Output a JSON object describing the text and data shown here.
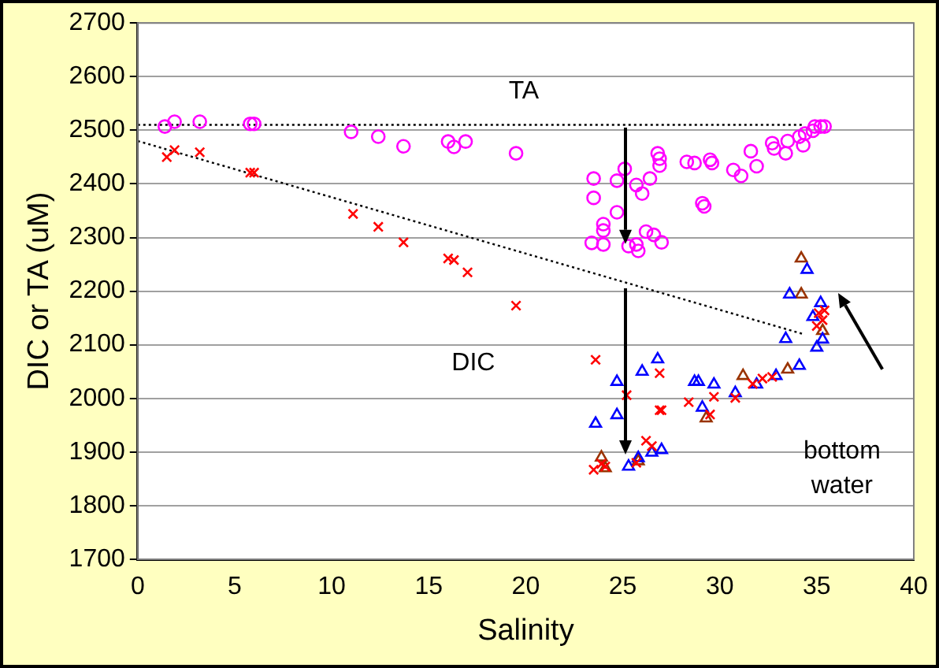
{
  "chart_data": {
    "type": "scatter",
    "xlabel": "Salinity",
    "ylabel": "DIC or TA (uM)",
    "xlim": [
      0,
      40
    ],
    "xticks": [
      0,
      5,
      10,
      15,
      20,
      25,
      30,
      35,
      40
    ],
    "ylim": [
      1700,
      2700
    ],
    "yticks": [
      1700,
      1800,
      1900,
      2000,
      2100,
      2200,
      2300,
      2400,
      2500,
      2600,
      2700
    ],
    "grid": "y",
    "legend": false,
    "annotations": [
      "TA",
      "DIC",
      "bottom water"
    ],
    "series": [
      {
        "color": "#ff00ff",
        "marker": "circle",
        "x": [
          1.4,
          1.9,
          3.2,
          5.8,
          6,
          11,
          12.4,
          13.7,
          16,
          16.3,
          16.9,
          19.5,
          23.5,
          23.5,
          24.7,
          25.1,
          24.7,
          24,
          24,
          23.4,
          24,
          25.7,
          26,
          26.4,
          26.8,
          26.9,
          26.9,
          25.3,
          25.7,
          25.8,
          26.2,
          26.6,
          27,
          28.3,
          28.7,
          29.5,
          29.6,
          29.1,
          29.2,
          30.7,
          31.1,
          31.6,
          31.9,
          32.7,
          32.8,
          33.4,
          33.5,
          34.1,
          34.3,
          34.4,
          34.9,
          35.2,
          35.4,
          34.8
        ],
        "values": [
          2507,
          2516,
          2516,
          2512,
          2512,
          2497,
          2488,
          2470,
          2479,
          2469,
          2479,
          2457,
          2410,
          2374,
          2406,
          2428,
          2347,
          2325,
          2313,
          2290,
          2287,
          2398,
          2382,
          2410,
          2457,
          2447,
          2434,
          2284,
          2287,
          2275,
          2311,
          2305,
          2291,
          2441,
          2439,
          2445,
          2439,
          2364,
          2358,
          2426,
          2415,
          2461,
          2433,
          2476,
          2466,
          2457,
          2480,
          2488,
          2472,
          2494,
          2507,
          2507,
          2507,
          2499
        ]
      },
      {
        "color": "#ff0000",
        "marker": "cross",
        "x": [
          1.5,
          1.9,
          3.2,
          5.8,
          6,
          11.1,
          12.4,
          13.7,
          16,
          16.3,
          17,
          19.5,
          23.6,
          25.2,
          26.9,
          26.9,
          27,
          23.5,
          23.9,
          24.1,
          25.7,
          26.2,
          26.5,
          28.4,
          29.7,
          29.5,
          30.8,
          31.7,
          32.2,
          32.7,
          35.1,
          35.3,
          35.4,
          35
        ],
        "values": [
          2450,
          2463,
          2459,
          2421,
          2421,
          2344,
          2320,
          2291,
          2261,
          2258,
          2235,
          2173,
          2072,
          2006,
          2047,
          1978,
          1978,
          1867,
          1878,
          1873,
          1880,
          1921,
          1911,
          1993,
          2003,
          1970,
          2001,
          2027,
          2037,
          2040,
          2159,
          2146,
          2164,
          2135
        ]
      },
      {
        "color": "#0000ff",
        "marker": "triangle",
        "x": [
          23.6,
          24.7,
          24.7,
          26,
          26.8,
          25.3,
          25.8,
          26.5,
          27,
          28.7,
          28.9,
          29.7,
          29.1,
          30.8,
          31.9,
          32.9,
          33.4,
          34.1,
          33.6,
          35.2,
          34.8,
          35,
          35.3,
          34.5
        ],
        "values": [
          1953,
          2031,
          1969,
          2050,
          2073,
          1873,
          1889,
          1899,
          1904,
          2031,
          2031,
          2026,
          1983,
          2010,
          2026,
          2042,
          2111,
          2061,
          2194,
          2178,
          2152,
          2095,
          2110,
          2240
        ]
      },
      {
        "color": "#993300",
        "marker": "triangle",
        "x": [
          34.2,
          34.2,
          23.9,
          24.1,
          25.8,
          29.3,
          31.2,
          33.5,
          35.3
        ],
        "values": [
          2261,
          2194,
          1890,
          1870,
          1883,
          1963,
          2042,
          2054,
          2126
        ]
      },
      {
        "type": "line",
        "color": "#000000",
        "marker": "none",
        "line_style": "dotted",
        "x": [
          0,
          34.3
        ],
        "values": [
          2510,
          2510
        ]
      },
      {
        "type": "line",
        "color": "#000000",
        "marker": "none",
        "line_style": "dotted",
        "x": [
          0,
          34.3
        ],
        "values": [
          2480,
          2120
        ]
      }
    ]
  }
}
